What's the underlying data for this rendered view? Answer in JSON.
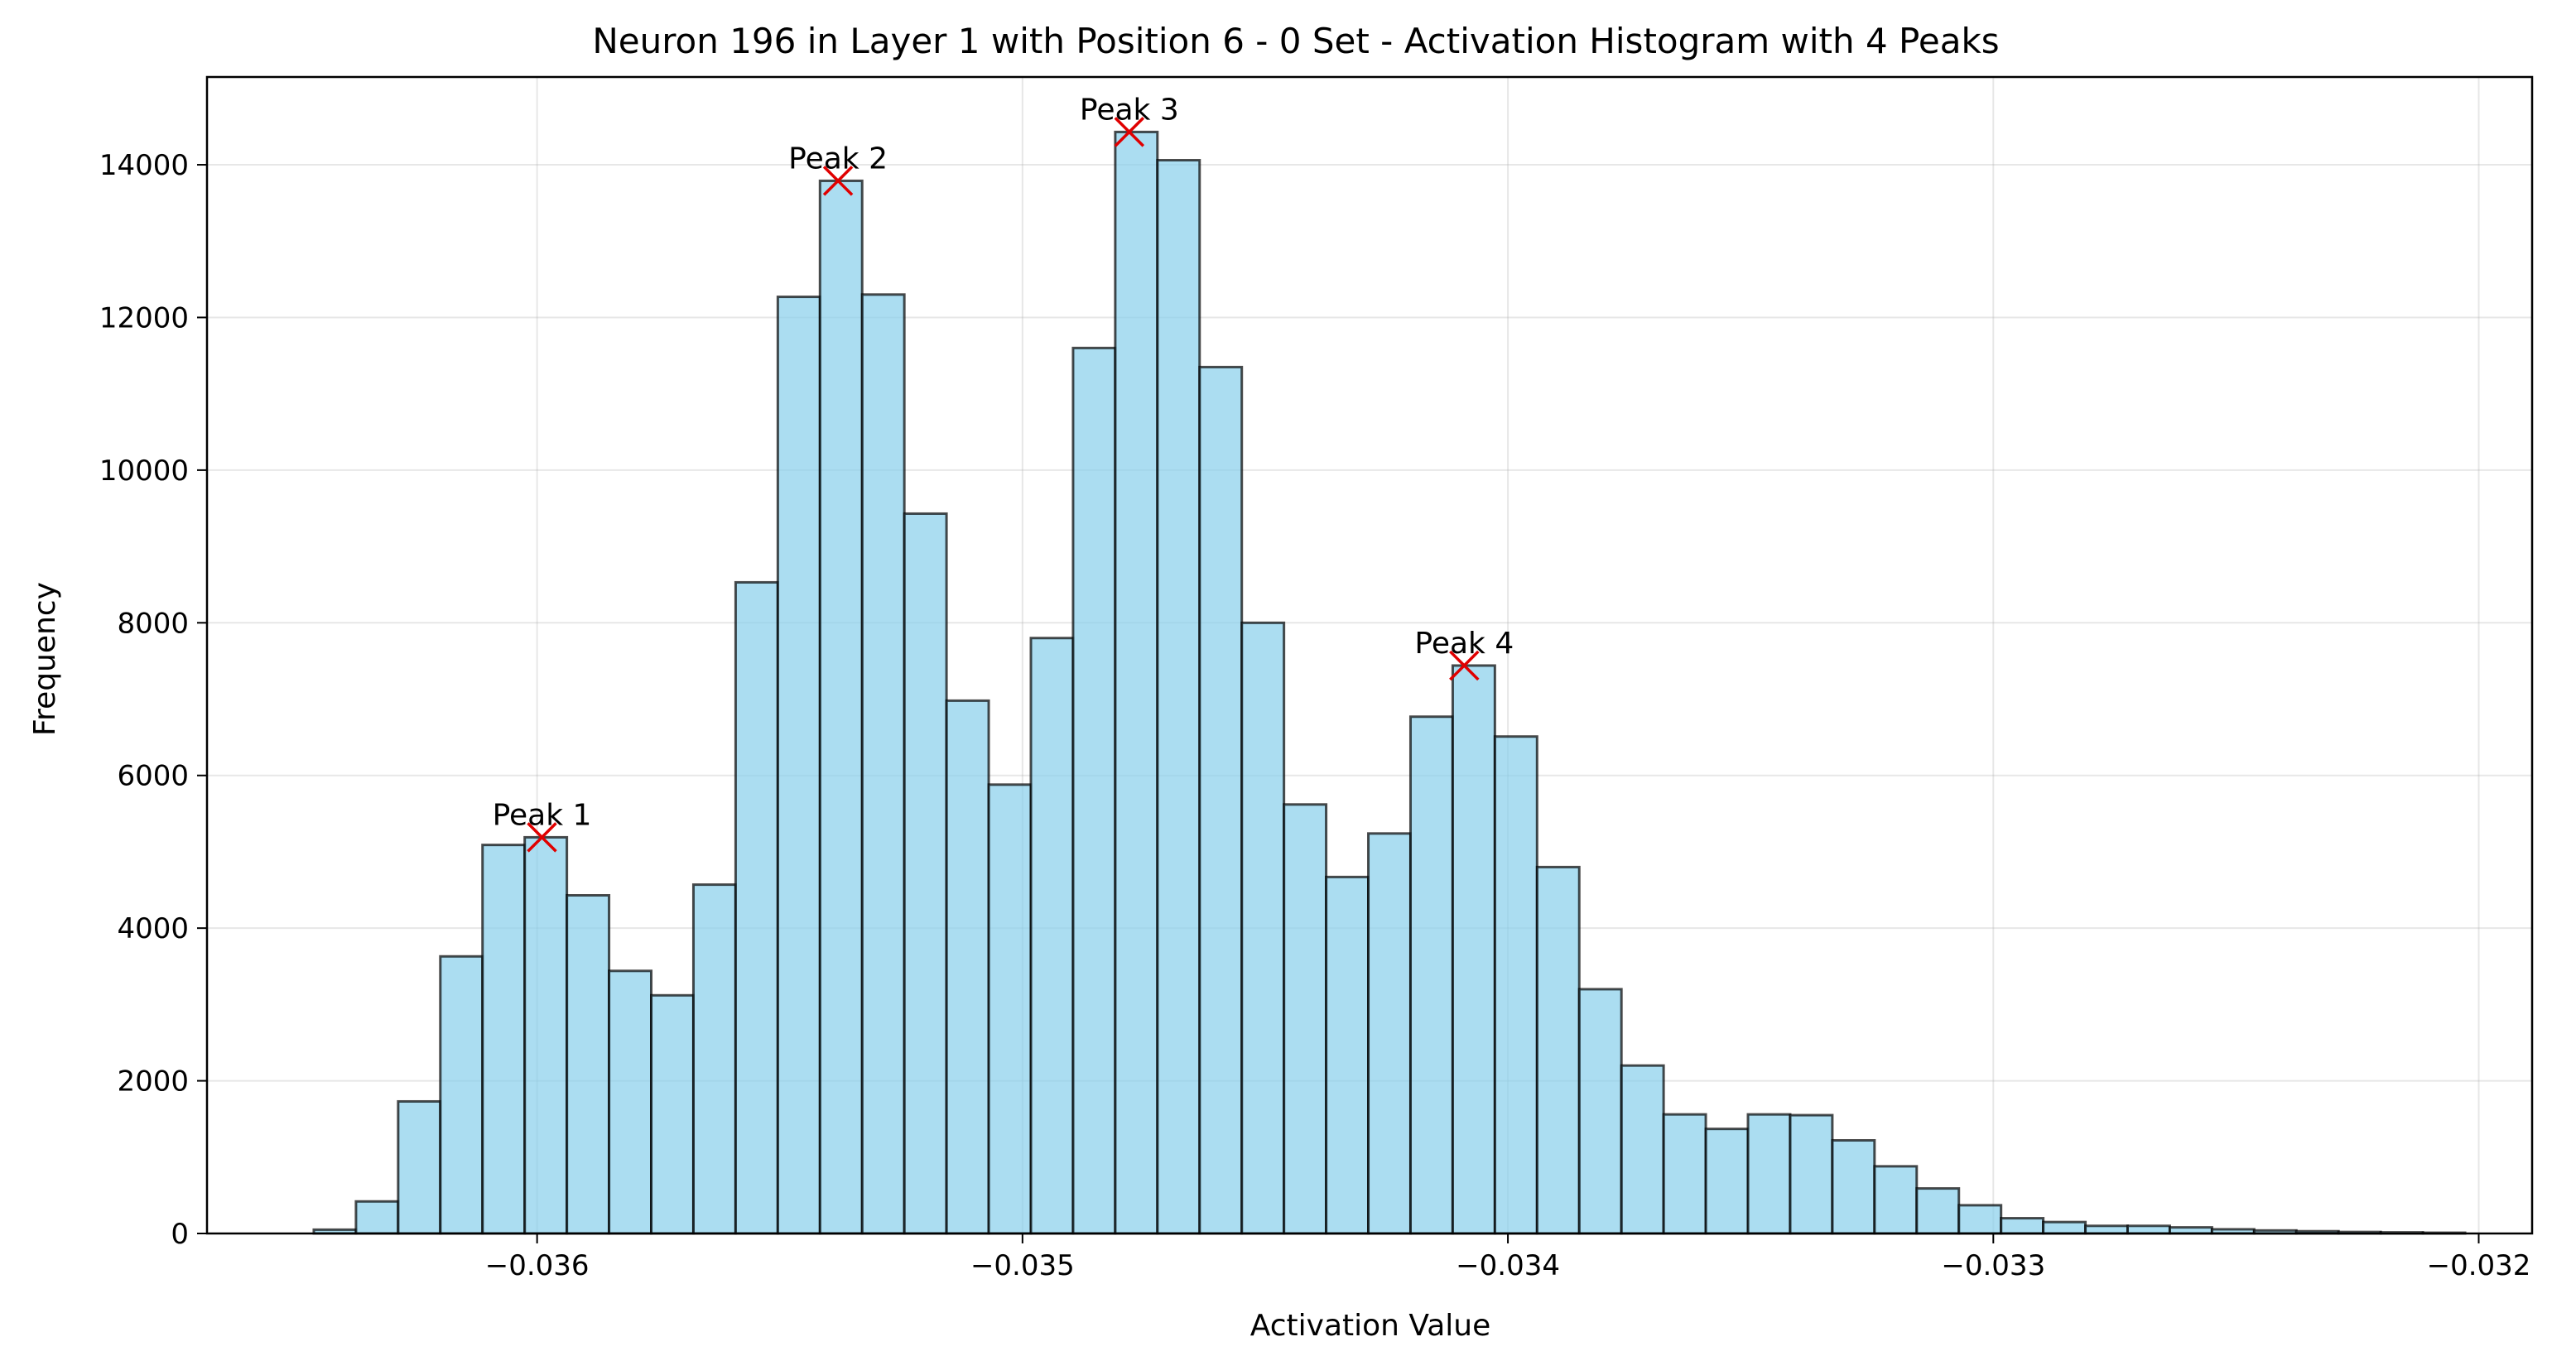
{
  "chart_data": {
    "type": "bar",
    "title": "Neuron 196 in Layer 1 with Position 6 - 0 Set - Activation Histogram with 4 Peaks",
    "xlabel": "Activation Value",
    "ylabel": "Frequency",
    "xlim": [
      -0.03668,
      -0.03189
    ],
    "ylim": [
      0,
      15150
    ],
    "grid": true,
    "bar_color": "#87CEEB",
    "edge_color": "#000000",
    "marker_color": "#e00000",
    "x_ticks": [
      -0.036,
      -0.035,
      -0.034,
      -0.033,
      -0.032
    ],
    "x_tick_labels": [
      "−0.036",
      "−0.035",
      "−0.034",
      "−0.033",
      "−0.032"
    ],
    "y_ticks": [
      0,
      2000,
      4000,
      6000,
      8000,
      10000,
      12000,
      14000
    ],
    "y_tick_labels": [
      "0",
      "2000",
      "4000",
      "6000",
      "8000",
      "10000",
      "12000",
      "14000"
    ],
    "bin_start": -0.03646,
    "bin_width": 8.69e-05,
    "values": [
      50,
      420,
      1730,
      3630,
      5090,
      5190,
      4430,
      3440,
      3120,
      4570,
      8530,
      12270,
      13790,
      12300,
      9430,
      6980,
      5880,
      7800,
      11600,
      14430,
      14060,
      11350,
      8000,
      5620,
      4670,
      5240,
      6770,
      7440,
      6510,
      4800,
      3200,
      2200,
      1560,
      1370,
      1560,
      1550,
      1220,
      880,
      590,
      370,
      200,
      150,
      100,
      100,
      80,
      55,
      40,
      30,
      20,
      15,
      10
    ],
    "peaks": [
      {
        "label": "Peak 1",
        "x": -0.03599,
        "y": 5190
      },
      {
        "label": "Peak 2",
        "x": -0.03538,
        "y": 13790
      },
      {
        "label": "Peak 3",
        "x": -0.03478,
        "y": 14430
      },
      {
        "label": "Peak 4",
        "x": -0.03409,
        "y": 7440
      }
    ]
  }
}
